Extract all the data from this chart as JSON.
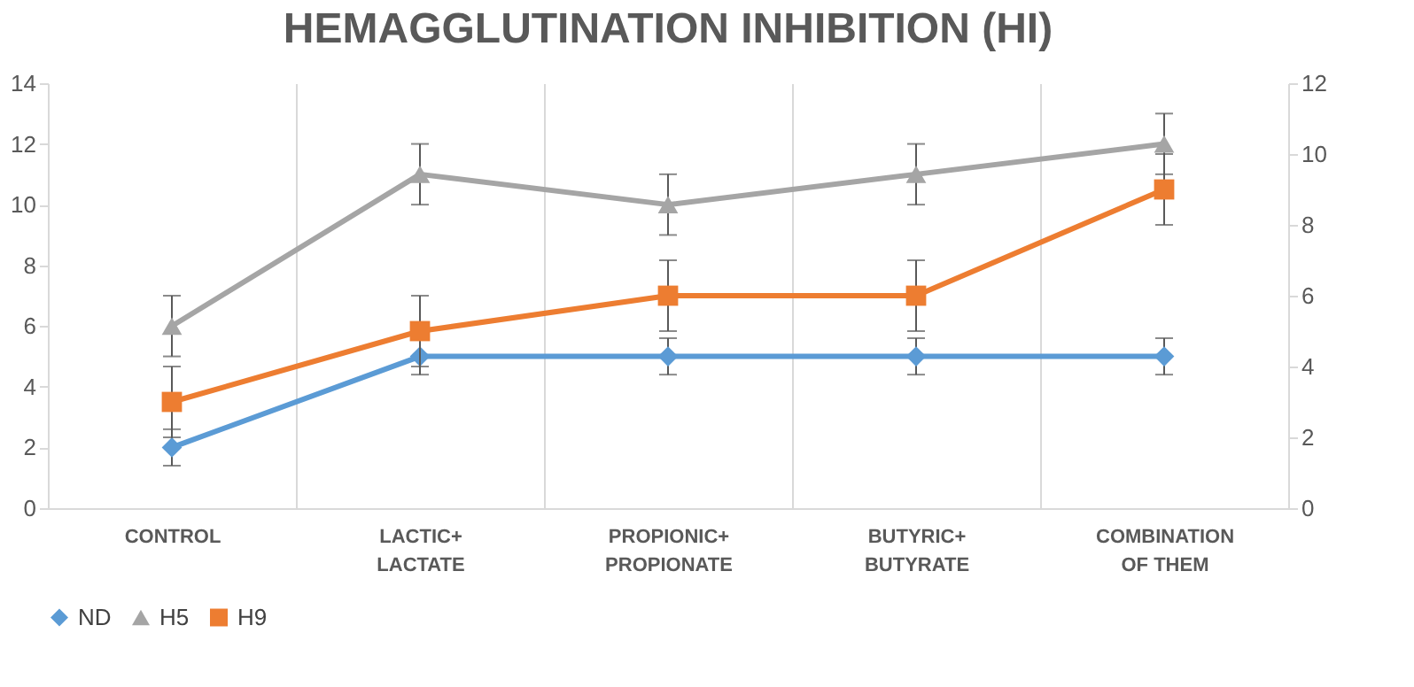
{
  "chart_data": {
    "type": "line",
    "title": "HEMAGGLUTINATION INHIBITION (HI)",
    "categories": [
      "CONTROL",
      "LACTIC+\nLACTATE",
      "PROPIONIC+\nPROPIONATE",
      "BUTYRIC+\nBUTYRATE",
      "COMBINATION\nOF THEM"
    ],
    "ylim": [
      0,
      14
    ],
    "yticks": [
      0,
      2,
      4,
      6,
      8,
      10,
      12,
      14
    ],
    "y2lim": [
      0,
      12
    ],
    "y2ticks": [
      0,
      2,
      4,
      6,
      8,
      10,
      12
    ],
    "grid": "x",
    "legend": "bottom",
    "series": [
      {
        "name": "ND",
        "color": "#5b9bd5",
        "marker": "diamond",
        "values": [
          2,
          5,
          5,
          5,
          5
        ],
        "errors": [
          0.6,
          0.6,
          0.6,
          0.6,
          0.6
        ]
      },
      {
        "name": "H5",
        "color": "#a5a5a5",
        "marker": "triangle",
        "values": [
          6,
          11,
          10,
          11,
          12
        ],
        "errors": [
          1,
          1,
          1,
          1,
          1
        ]
      },
      {
        "name": "H9",
        "color": "#ed7d31",
        "marker": "square",
        "axis": "y2",
        "values": [
          3,
          5,
          6,
          6,
          9
        ],
        "errors": [
          1,
          1,
          1,
          1,
          1
        ]
      }
    ]
  }
}
